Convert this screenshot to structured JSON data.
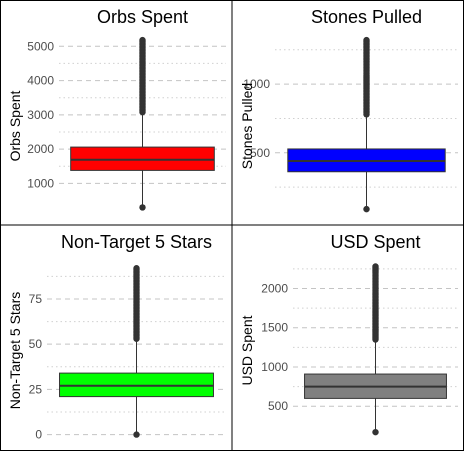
{
  "chart_data": [
    {
      "type": "boxplot",
      "title": "Orbs Spent",
      "xlabel": "",
      "ylabel": "Orbs Spent",
      "ylim": [
        50,
        5300
      ],
      "yticks": [
        1000,
        2000,
        3000,
        4000,
        5000
      ],
      "minor_gridlines": [
        1500,
        2500,
        3500,
        4500
      ],
      "grid": "y-major dashed, y-minor dotted",
      "fill": "#ff0000",
      "box": {
        "whisker_low": 300,
        "q1": 1380,
        "median": 1690,
        "q3": 2060,
        "whisker_high": 3080
      },
      "outlier_range": [
        3080,
        5180
      ]
    },
    {
      "type": "boxplot",
      "title": "Stones Pulled",
      "xlabel": "",
      "ylabel": "Stones Pulled",
      "ylim": [
        40,
        1350
      ],
      "yticks": [
        500,
        1000
      ],
      "minor_gridlines": [
        250,
        750,
        1250
      ],
      "grid": "y-major dashed, y-minor dotted",
      "fill": "#0000ff",
      "box": {
        "whisker_low": 90,
        "q1": 362,
        "median": 440,
        "q3": 528,
        "whisker_high": 780
      },
      "outlier_range": [
        780,
        1320
      ]
    },
    {
      "type": "boxplot",
      "title": "Non-Target 5 Stars",
      "xlabel": "",
      "ylabel": "Non-Target 5 Stars",
      "ylim": [
        -3,
        96
      ],
      "yticks": [
        0,
        25,
        50,
        75
      ],
      "minor_gridlines": [
        12.5,
        37.5,
        62.5,
        87.5
      ],
      "grid": "y-major dashed, y-minor dotted",
      "fill": "#00ff00",
      "box": {
        "whisker_low": 0,
        "q1": 21,
        "median": 27,
        "q3": 34,
        "whisker_high": 53
      },
      "outlier_range": [
        53,
        92
      ]
    },
    {
      "type": "boxplot",
      "title": "USD Spent",
      "xlabel": "",
      "ylabel": "USD Spent",
      "ylim": [
        70,
        2350
      ],
      "yticks": [
        500,
        1000,
        1500,
        2000
      ],
      "minor_gridlines": [
        750,
        1250,
        1750,
        2250
      ],
      "grid": "y-major dashed, y-minor dotted",
      "fill": "#808080",
      "box": {
        "whisker_low": 170,
        "q1": 600,
        "median": 750,
        "q3": 910,
        "whisker_high": 1350
      },
      "outlier_range": [
        1350,
        2280
      ]
    }
  ]
}
